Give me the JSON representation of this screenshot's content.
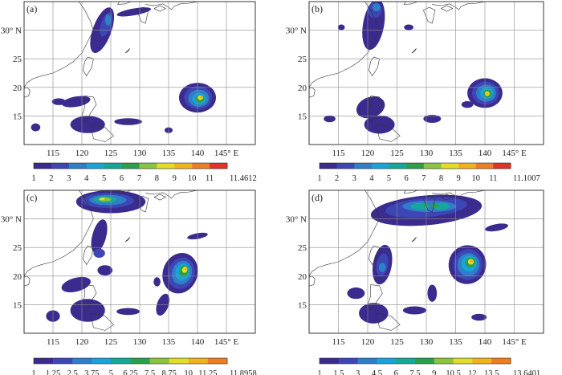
{
  "chart_data": [
    {
      "type": "heatmap",
      "panel_label": "(a)",
      "x_ticks": [
        "115",
        "120",
        "125",
        "130",
        "135",
        "140",
        "145° E"
      ],
      "y_ticks": [
        "15",
        "20",
        "25",
        "30° N"
      ],
      "xlim": [
        110,
        150
      ],
      "ylim": [
        10,
        35
      ],
      "grid": true,
      "colorbar": {
        "labels": [
          "1",
          "2",
          "3",
          "4",
          "5",
          "6",
          "7",
          "8",
          "9",
          "10",
          "11",
          "11.4612"
        ],
        "colors": [
          "#3b2b8f",
          "#3d46b5",
          "#2f7fc8",
          "#1aa3d9",
          "#15a89a",
          "#2ba04a",
          "#8bc43f",
          "#e3dc28",
          "#f2b21f",
          "#ee7e24",
          "#e0342a"
        ]
      },
      "features": [
        {
          "name": "rain-band-taiwan-east-china",
          "lon": 123,
          "lat": 29,
          "peak": 3
        },
        {
          "name": "typhoon-core",
          "lon": 140,
          "lat": 18,
          "peak": 9
        },
        {
          "name": "south-china-sea-patch",
          "lon": 122,
          "lat": 14,
          "peak": 2
        }
      ]
    },
    {
      "type": "heatmap",
      "panel_label": "(b)",
      "x_ticks": [
        "115",
        "120",
        "125",
        "130",
        "135",
        "140",
        "145° E"
      ],
      "y_ticks": [
        "15",
        "20",
        "25",
        "30° N"
      ],
      "xlim": [
        110,
        150
      ],
      "ylim": [
        10,
        35
      ],
      "grid": true,
      "colorbar": {
        "labels": [
          "1",
          "2",
          "3",
          "4",
          "5",
          "6",
          "7",
          "8",
          "9",
          "10",
          "11",
          "11.1007"
        ],
        "colors": [
          "#3b2b8f",
          "#3d46b5",
          "#2f7fc8",
          "#1aa3d9",
          "#15a89a",
          "#2ba04a",
          "#8bc43f",
          "#e3dc28",
          "#f2b21f",
          "#ee7e24",
          "#e0342a"
        ]
      },
      "features": [
        {
          "name": "rain-band-east-china",
          "lon": 121,
          "lat": 31,
          "peak": 4
        },
        {
          "name": "typhoon-core",
          "lon": 140,
          "lat": 19,
          "peak": 9
        },
        {
          "name": "south-china-sea-patch",
          "lon": 120,
          "lat": 14,
          "peak": 2
        }
      ]
    },
    {
      "type": "heatmap",
      "panel_label": "(c)",
      "x_ticks": [
        "115",
        "120",
        "125",
        "130",
        "135",
        "140",
        "145° E"
      ],
      "y_ticks": [
        "15",
        "20",
        "25",
        "30° N"
      ],
      "xlim": [
        110,
        150
      ],
      "ylim": [
        10,
        35
      ],
      "grid": true,
      "colorbar": {
        "labels": [
          "1",
          "1.25",
          "2.5",
          "3.75",
          "5",
          "6.25",
          "7.5",
          "8.75",
          "10",
          "11.25",
          "11.8958"
        ],
        "colors": [
          "#3b2b8f",
          "#3d46b5",
          "#2f7fc8",
          "#1aa3d9",
          "#15a89a",
          "#2ba04a",
          "#8bc43f",
          "#e3dc28",
          "#f2b21f",
          "#ee7e24"
        ]
      },
      "features": [
        {
          "name": "rain-band-east-china-sea",
          "lon": 124,
          "lat": 33,
          "peak": 8.75
        },
        {
          "name": "typhoon-core",
          "lon": 137,
          "lat": 21,
          "peak": 10
        },
        {
          "name": "south-china-sea-patch",
          "lon": 120,
          "lat": 14,
          "peak": 2.5
        }
      ]
    },
    {
      "type": "heatmap",
      "panel_label": "(d)",
      "x_ticks": [
        "115",
        "120",
        "125",
        "130",
        "135",
        "140",
        "145° E"
      ],
      "y_ticks": [
        "15",
        "20",
        "25",
        "30° N"
      ],
      "xlim": [
        110,
        150
      ],
      "ylim": [
        10,
        35
      ],
      "grid": true,
      "colorbar": {
        "labels": [
          "1",
          "1.5",
          "3",
          "4.5",
          "6",
          "7.5",
          "9",
          "10.5",
          "12",
          "13.5",
          "13.6401"
        ],
        "colors": [
          "#3b2b8f",
          "#3d46b5",
          "#2f7fc8",
          "#1aa3d9",
          "#15a89a",
          "#2ba04a",
          "#8bc43f",
          "#e3dc28",
          "#f2b21f",
          "#ee7e24"
        ]
      },
      "features": [
        {
          "name": "rain-band-east-china-sea",
          "lon": 130,
          "lat": 32,
          "peak": 7.5
        },
        {
          "name": "typhoon-core",
          "lon": 137,
          "lat": 22,
          "peak": 12
        },
        {
          "name": "south-china-sea-patch",
          "lon": 121,
          "lat": 14,
          "peak": 3
        }
      ]
    }
  ]
}
